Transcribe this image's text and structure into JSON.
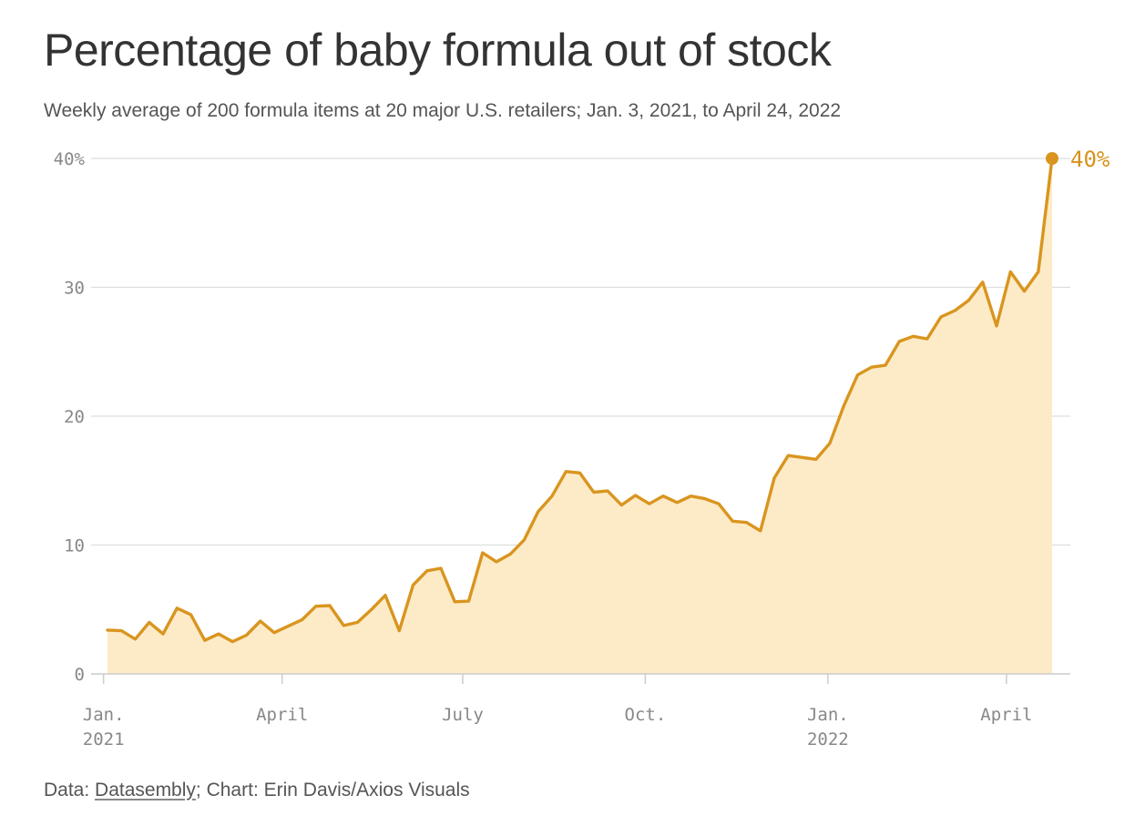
{
  "title": "Percentage of baby formula out of stock",
  "subtitle": "Weekly average of 200 formula items at 20 major U.S. retailers; Jan. 3, 2021, to April 24, 2022",
  "footer": {
    "prefix": "Data: ",
    "source_link": "Datasembly",
    "suffix": "; Chart: Erin Davis/Axios Visuals"
  },
  "colors": {
    "line": "#d9951f",
    "area": "#fdebc8",
    "grid": "#dddddd",
    "axis": "#cccccc",
    "tick_text": "#888888",
    "end_label": "#d6921a"
  },
  "chart_data": {
    "type": "area",
    "x_type": "date",
    "xlim": [
      "2021-01-03",
      "2022-04-24"
    ],
    "ylim": [
      0,
      40
    ],
    "grid": true,
    "y_ticks": [
      {
        "value": 0,
        "label": "0"
      },
      {
        "value": 10,
        "label": "10"
      },
      {
        "value": 20,
        "label": "20"
      },
      {
        "value": 30,
        "label": "30"
      },
      {
        "value": 40,
        "label": "40%"
      }
    ],
    "x_ticks": [
      {
        "date": "2021-01-01",
        "lines": [
          "Jan.",
          "2021"
        ]
      },
      {
        "date": "2021-04-01",
        "lines": [
          "April"
        ]
      },
      {
        "date": "2021-07-01",
        "lines": [
          "July"
        ]
      },
      {
        "date": "2021-10-01",
        "lines": [
          "Oct."
        ]
      },
      {
        "date": "2022-01-01",
        "lines": [
          "Jan.",
          "2022"
        ]
      },
      {
        "date": "2022-04-01",
        "lines": [
          "April"
        ]
      }
    ],
    "end_label": "40%",
    "series": [
      {
        "x": [
          "2021-01-03",
          "2021-01-10",
          "2021-01-17",
          "2021-01-24",
          "2021-01-31",
          "2021-02-07",
          "2021-02-14",
          "2021-02-21",
          "2021-02-28",
          "2021-03-07",
          "2021-03-14",
          "2021-03-21",
          "2021-03-28",
          "2021-04-04",
          "2021-04-11",
          "2021-04-18",
          "2021-04-25",
          "2021-05-02",
          "2021-05-09",
          "2021-05-16",
          "2021-05-23",
          "2021-05-30",
          "2021-06-06",
          "2021-06-13",
          "2021-06-20",
          "2021-06-27",
          "2021-07-04",
          "2021-07-11",
          "2021-07-18",
          "2021-07-25",
          "2021-08-01",
          "2021-08-08",
          "2021-08-15",
          "2021-08-22",
          "2021-08-29",
          "2021-09-05",
          "2021-09-12",
          "2021-09-19",
          "2021-09-26",
          "2021-10-03",
          "2021-10-10",
          "2021-10-17",
          "2021-10-24",
          "2021-10-31",
          "2021-11-07",
          "2021-11-14",
          "2021-11-21",
          "2021-11-28",
          "2021-12-05",
          "2021-12-12",
          "2021-12-19",
          "2021-12-26",
          "2022-01-02",
          "2022-01-09",
          "2022-01-16",
          "2022-01-23",
          "2022-01-30",
          "2022-02-06",
          "2022-02-13",
          "2022-02-20",
          "2022-02-27",
          "2022-03-06",
          "2022-03-13",
          "2022-03-20",
          "2022-03-27",
          "2022-04-03",
          "2022-04-10",
          "2022-04-17",
          "2022-04-24"
        ],
        "y": [
          3.4,
          3.35,
          2.7,
          4.0,
          3.1,
          5.1,
          4.6,
          2.6,
          3.1,
          2.5,
          3.0,
          4.1,
          3.2,
          3.7,
          4.2,
          5.25,
          5.3,
          3.75,
          4.0,
          5.0,
          6.1,
          3.35,
          6.9,
          8.0,
          8.2,
          5.6,
          5.65,
          9.4,
          8.7,
          9.3,
          10.4,
          12.6,
          13.8,
          15.7,
          15.6,
          14.1,
          14.2,
          13.1,
          13.85,
          13.2,
          13.8,
          13.3,
          13.8,
          13.6,
          13.2,
          11.85,
          11.75,
          11.1,
          15.2,
          16.95,
          16.8,
          16.65,
          17.9,
          20.8,
          23.2,
          23.8,
          23.95,
          25.8,
          26.2,
          26.0,
          27.7,
          28.2,
          29.0,
          30.4,
          27.0,
          31.2,
          29.7,
          31.2,
          40.0
        ]
      }
    ]
  }
}
